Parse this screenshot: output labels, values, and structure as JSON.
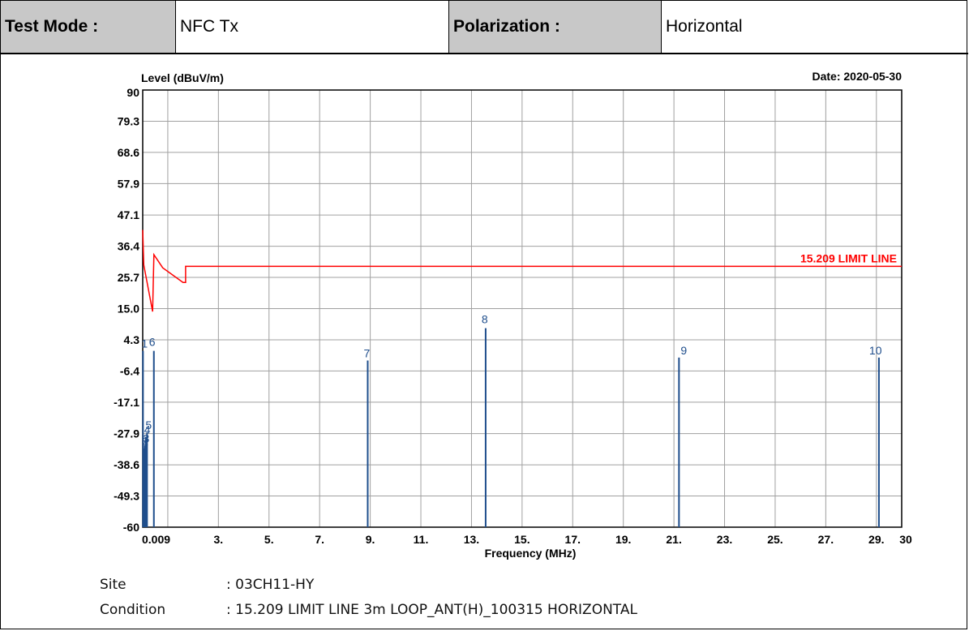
{
  "header": {
    "test_mode_label": "Test Mode :",
    "test_mode_value": "NFC Tx",
    "polarization_label": "Polarization :",
    "polarization_value": "Horizontal"
  },
  "info": {
    "site_label": "Site",
    "site_value": ": 03CH11-HY",
    "condition_label": "Condition",
    "condition_value": ": 15.209 LIMIT LINE 3m LOOP_ANT(H)_100315 HORIZONTAL"
  },
  "chart_data": {
    "type": "line",
    "ylabel": "Level (dBuV/m)",
    "xlabel": "Frequency (MHz)",
    "date": "Date: 2020-05-30",
    "ylim": [
      -60,
      90
    ],
    "xlim": [
      0.009,
      30
    ],
    "y_ticks": [
      "90",
      "79.3",
      "68.6",
      "57.9",
      "47.1",
      "36.4",
      "25.7",
      "15.0",
      "4.3",
      "-6.4",
      "-17.1",
      "-27.9",
      "-38.6",
      "-49.3",
      "-60"
    ],
    "x_ticks": [
      {
        "v": 0.009,
        "label": "0.009"
      },
      {
        "v": 3,
        "label": "3."
      },
      {
        "v": 5,
        "label": "5."
      },
      {
        "v": 7,
        "label": "7."
      },
      {
        "v": 9,
        "label": "9."
      },
      {
        "v": 11,
        "label": "11."
      },
      {
        "v": 13,
        "label": "13."
      },
      {
        "v": 15,
        "label": "15."
      },
      {
        "v": 17,
        "label": "17."
      },
      {
        "v": 19,
        "label": "19."
      },
      {
        "v": 21,
        "label": "21."
      },
      {
        "v": 23,
        "label": "23."
      },
      {
        "v": 25,
        "label": "25."
      },
      {
        "v": 27,
        "label": "27."
      },
      {
        "v": 29,
        "label": "29."
      },
      {
        "v": 30,
        "label": "30"
      }
    ],
    "grid_x": [
      0.009,
      1,
      3,
      5,
      7,
      9,
      11,
      13,
      15,
      17,
      19,
      21,
      23,
      25,
      27,
      29
    ],
    "grid": true,
    "limit_line": {
      "name": "15.209 LIMIT LINE",
      "color": "#ff0000",
      "points": [
        [
          0.009,
          42
        ],
        [
          0.05,
          30
        ],
        [
          0.4,
          14
        ],
        [
          0.45,
          33.5
        ],
        [
          0.8,
          29
        ],
        [
          1.6,
          24
        ],
        [
          1.705,
          24
        ],
        [
          1.705,
          29.5
        ],
        [
          30,
          29.5
        ]
      ]
    },
    "peaks": {
      "color": "#1f4e8c",
      "points": [
        {
          "label": "1",
          "x": 0.02,
          "y": 0.5
        },
        {
          "label": "2",
          "x": 0.05,
          "y": -33
        },
        {
          "label": "3",
          "x": 0.09,
          "y": -32
        },
        {
          "label": "4",
          "x": 0.13,
          "y": -29
        },
        {
          "label": "5",
          "x": 0.18,
          "y": -27.5
        },
        {
          "label": "6",
          "x": 0.45,
          "y": 0.5
        },
        {
          "label": "7",
          "x": 8.9,
          "y": -2.8
        },
        {
          "label": "8",
          "x": 13.56,
          "y": 8.3
        },
        {
          "label": "9",
          "x": 21.2,
          "y": -1.8
        },
        {
          "label": "10",
          "x": 29.1,
          "y": -1.8
        }
      ]
    }
  }
}
